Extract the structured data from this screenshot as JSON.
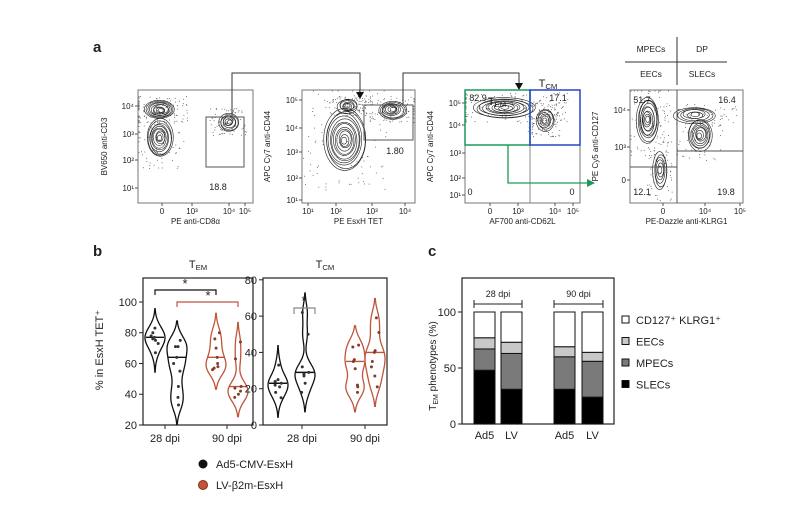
{
  "panel_labels": {
    "a": "a",
    "b": "b",
    "c": "c"
  },
  "colors": {
    "ad5": "#111111",
    "lv": "#c0543a",
    "tem_gate": "#1a9a5a",
    "tcm_gate": "#2446c8",
    "bracket_grey": "#888888"
  },
  "flow_plots": [
    {
      "y_label": "BV650 anti-CD3",
      "x_label": "PE anti-CD8α",
      "y_ticks": [
        "10⁴",
        "10³",
        "10²",
        "10¹"
      ],
      "x_ticks": [
        "0",
        "10³",
        "10⁴",
        "10⁵"
      ],
      "gate_value": "18.8"
    },
    {
      "y_label": "APC Cy7 anti-CD44",
      "x_label": "PE EsxH TET",
      "y_ticks": [
        "10⁵",
        "10⁴",
        "10³",
        "10²",
        "10¹"
      ],
      "x_ticks": [
        "10¹",
        "10²",
        "10³",
        "10⁴"
      ],
      "gate_value": "1.80"
    },
    {
      "y_label": "APC Cy7 anti-CD44",
      "x_label": "AF700 anti-CD62L",
      "y_ticks": [
        "10⁵",
        "10⁴",
        "10³",
        "10²",
        "10¹"
      ],
      "x_ticks": [
        "0",
        "10³",
        "10⁴",
        "10⁵"
      ],
      "quadrants": [
        "82.9",
        "17.1",
        "0",
        "0"
      ],
      "tem_label": {
        "main": "T",
        "sub": "EM"
      },
      "tcm_label": {
        "main": "T",
        "sub": "CM"
      }
    },
    {
      "y_label": "PE Cy5 anti-CD127",
      "x_label": "PE-Dazzle anti-KLRG1",
      "y_ticks": [
        "10⁴",
        "10³",
        "0"
      ],
      "x_ticks": [
        "0",
        "10⁴",
        "10⁵"
      ],
      "quadrants": [
        "51.7",
        "16.4",
        "12.1",
        "19.8"
      ]
    }
  ],
  "quadrant_key": {
    "top_left": "MPECs",
    "top_right": "DP",
    "bottom_left": "EECs",
    "bottom_right": "SLECs"
  },
  "chart_data": [
    {
      "type": "violin",
      "title": {
        "main": "T",
        "sub": "EM"
      },
      "ylabel": "% in EsxH TET⁺",
      "ylim": [
        20,
        115
      ],
      "y_ticks": [
        "20",
        "40",
        "60",
        "80",
        "100"
      ],
      "categories": [
        "28 dpi",
        "90 dpi"
      ],
      "series": [
        {
          "name": "Ad5-CMV-EsxH",
          "values": [
            [
              83,
              80,
              78,
              77,
              76,
              75,
              73,
              67
            ],
            [
              75,
              71,
              71,
              64,
              60,
              55,
              45,
              38,
              33
            ]
          ],
          "medians": [
            77,
            64
          ]
        },
        {
          "name": "LV-β2m-EsxH",
          "values": [
            [
              80,
              76,
              70,
              64,
              60,
              58,
              57,
              56
            ],
            [
              74,
              63,
              45,
              44,
              42,
              40,
              38
            ]
          ],
          "medians": [
            64,
            45
          ]
        }
      ],
      "significance": [
        {
          "label": "*",
          "between": "Ad5-CMV-EsxH 28 dpi vs 90 dpi"
        },
        {
          "label": "*",
          "between": "LV-β2m-EsxH 28 dpi vs 90 dpi"
        }
      ]
    },
    {
      "type": "violin",
      "title": {
        "main": "T",
        "sub": "CM"
      },
      "ylim": [
        0,
        80
      ],
      "y_ticks": [
        "0",
        "20",
        "40",
        "60",
        "80"
      ],
      "categories": [
        "28 dpi",
        "90 dpi"
      ],
      "series": [
        {
          "name": "Ad5-CMV-EsxH",
          "values": [
            [
              33,
              25,
              24,
              23,
              22,
              21,
              18,
              15
            ],
            [
              62,
              50,
              32,
              29,
              28,
              27,
              23,
              18
            ]
          ],
          "medians": [
            23,
            29
          ]
        },
        {
          "name": "LV-β2m-EsxH",
          "values": [
            [
              44,
              43,
              36,
              35,
              31,
              22,
              21,
              18
            ],
            [
              59,
              51,
              41,
              40,
              35,
              32,
              27,
              21
            ]
          ],
          "medians": [
            35,
            40
          ]
        }
      ],
      "significance": [
        {
          "label": "*",
          "between": "28 dpi Ad5-CMV-EsxH vs LV-β2m-EsxH"
        }
      ]
    },
    {
      "type": "bar",
      "stacked": true,
      "ylabel": {
        "main": "T",
        "sub": "EM",
        "rest": " phenotypes (%)"
      },
      "ylim": [
        0,
        130
      ],
      "y_ticks": [
        "0",
        "50",
        "100"
      ],
      "groups": [
        "28 dpi",
        "90 dpi"
      ],
      "categories": [
        "Ad5",
        "LV",
        "Ad5",
        "LV"
      ],
      "series": [
        {
          "name": "SLECs",
          "color": "#000000",
          "values": [
            48,
            31,
            31,
            24
          ]
        },
        {
          "name": "MPECs",
          "color": "#7a7a7a",
          "values": [
            19,
            32,
            29,
            32
          ]
        },
        {
          "name": "EECs",
          "color": "#c8c8c8",
          "values": [
            10,
            10,
            9,
            8
          ]
        },
        {
          "name": "CD127⁺ KLRG1⁺",
          "color": "#ffffff",
          "values": [
            23,
            27,
            31,
            36
          ]
        }
      ],
      "legend": "right"
    }
  ],
  "legend_b": [
    "Ad5-CMV-EsxH",
    "LV-β2m-EsxH"
  ]
}
